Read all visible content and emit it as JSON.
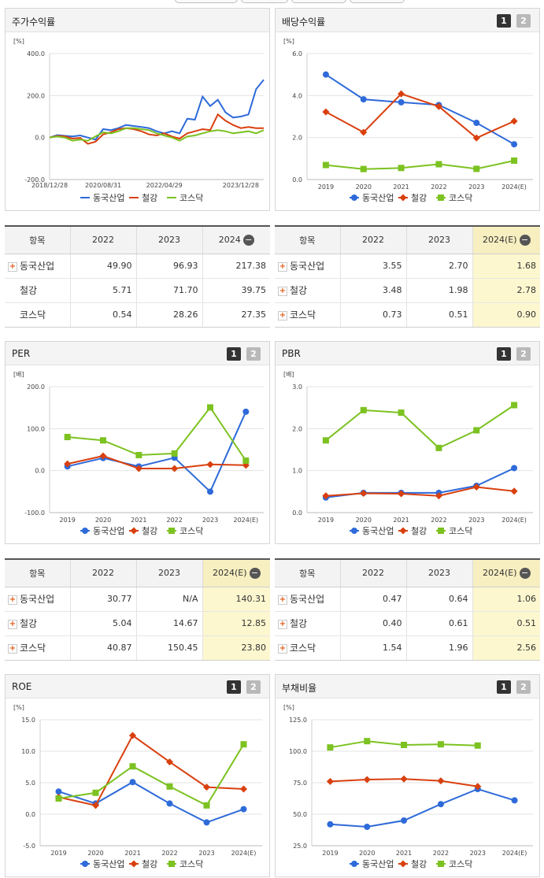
{
  "colors": {
    "dongkuk": "#2e6ad9",
    "steel": "#d9400f",
    "kosdaq": "#7cc221"
  },
  "legend": [
    "동국산업",
    "철강",
    "코스닥"
  ],
  "panels": {
    "stock": {
      "title": "주가수익률",
      "unit": "[%]"
    },
    "dividend": {
      "title": "배당수익률",
      "unit": "[%]",
      "btn1": "1",
      "btn2": "2"
    },
    "per": {
      "title": "PER",
      "unit": "[배]",
      "btn1": "1",
      "btn2": "2"
    },
    "pbr": {
      "title": "PBR",
      "unit": "[배]",
      "btn1": "1",
      "btn2": "2"
    },
    "roe": {
      "title": "ROE",
      "unit": "[%]",
      "btn1": "1",
      "btn2": "2"
    },
    "debt": {
      "title": "부채비율",
      "unit": "[%]",
      "btn1": "1",
      "btn2": "2"
    }
  },
  "tables": {
    "stock": {
      "headers": [
        "항목",
        "2022",
        "2023",
        "2024"
      ],
      "rows": [
        {
          "name": "동국산업",
          "plus": true,
          "values": [
            "49.90",
            "96.93",
            "217.38"
          ]
        },
        {
          "name": "철강",
          "plus": false,
          "values": [
            "5.71",
            "71.70",
            "39.75"
          ]
        },
        {
          "name": "코스닥",
          "plus": false,
          "values": [
            "0.54",
            "28.26",
            "27.35"
          ]
        }
      ]
    },
    "dividend": {
      "headers": [
        "항목",
        "2022",
        "2023",
        "2024(E)"
      ],
      "rows": [
        {
          "name": "동국산업",
          "plus": true,
          "values": [
            "3.55",
            "2.70",
            "1.68"
          ]
        },
        {
          "name": "철강",
          "plus": true,
          "values": [
            "3.48",
            "1.98",
            "2.78"
          ]
        },
        {
          "name": "코스닥",
          "plus": true,
          "values": [
            "0.73",
            "0.51",
            "0.90"
          ]
        }
      ]
    },
    "per": {
      "headers": [
        "항목",
        "2022",
        "2023",
        "2024(E)"
      ],
      "rows": [
        {
          "name": "동국산업",
          "plus": true,
          "values": [
            "30.77",
            "N/A",
            "140.31"
          ]
        },
        {
          "name": "철강",
          "plus": true,
          "values": [
            "5.04",
            "14.67",
            "12.85"
          ]
        },
        {
          "name": "코스닥",
          "plus": true,
          "values": [
            "40.87",
            "150.45",
            "23.80"
          ]
        }
      ]
    },
    "pbr": {
      "headers": [
        "항목",
        "2022",
        "2023",
        "2024(E)"
      ],
      "rows": [
        {
          "name": "동국산업",
          "plus": true,
          "values": [
            "0.47",
            "0.64",
            "1.06"
          ]
        },
        {
          "name": "철강",
          "plus": true,
          "values": [
            "0.40",
            "0.61",
            "0.51"
          ]
        },
        {
          "name": "코스닥",
          "plus": true,
          "values": [
            "1.54",
            "1.96",
            "2.56"
          ]
        }
      ]
    }
  },
  "chart_data": [
    {
      "id": "stock",
      "type": "line",
      "title": "주가수익률",
      "ylabel": "[%]",
      "ylim": [
        -200,
        400
      ],
      "yticks": [
        "400.0",
        "200.0",
        "0.0",
        "-200.0"
      ],
      "xticks": [
        "2018/12/28",
        "2020/08/31",
        "2022/04/29",
        "2023/12/28"
      ],
      "x": [
        "2018/12/28",
        "2019/03",
        "2019/06",
        "2019/09",
        "2019/12",
        "2020/03",
        "2020/06",
        "2020/08/31",
        "2020/10",
        "2020/12",
        "2021/03",
        "2021/06",
        "2021/09",
        "2021/12",
        "2022/02",
        "2022/04/29",
        "2022/06",
        "2022/08",
        "2022/10",
        "2022/12",
        "2023/02",
        "2023/04",
        "2023/06",
        "2023/08",
        "2023/10",
        "2023/12/28",
        "2024/02",
        "2024/04",
        "2024/05"
      ],
      "series": [
        {
          "name": "동국산업",
          "values": [
            0,
            12,
            8,
            5,
            10,
            0,
            -10,
            40,
            35,
            45,
            60,
            55,
            50,
            45,
            30,
            20,
            30,
            20,
            90,
            85,
            195,
            150,
            180,
            120,
            95,
            100,
            110,
            230,
            275
          ]
        },
        {
          "name": "철강",
          "values": [
            0,
            8,
            5,
            -5,
            -2,
            -30,
            -20,
            15,
            25,
            40,
            45,
            40,
            30,
            15,
            10,
            20,
            5,
            -5,
            20,
            30,
            40,
            35,
            110,
            80,
            60,
            45,
            50,
            45,
            45
          ]
        },
        {
          "name": "코스닥",
          "values": [
            0,
            5,
            0,
            -15,
            -10,
            -15,
            5,
            25,
            20,
            30,
            45,
            45,
            40,
            35,
            20,
            10,
            0,
            -15,
            5,
            10,
            20,
            30,
            35,
            30,
            20,
            25,
            30,
            20,
            35
          ]
        }
      ]
    },
    {
      "id": "dividend",
      "type": "line",
      "title": "배당수익률",
      "ylabel": "[%]",
      "ylim": [
        0,
        6
      ],
      "yticks": [
        "6.0",
        "4.0",
        "2.0",
        "0.0"
      ],
      "categories": [
        "2019",
        "2020",
        "2021",
        "2022",
        "2023",
        "2024(E)"
      ],
      "series": [
        {
          "name": "동국산업",
          "values": [
            5.0,
            3.82,
            3.68,
            3.55,
            2.7,
            1.68
          ]
        },
        {
          "name": "철강",
          "values": [
            3.22,
            2.25,
            4.08,
            3.48,
            1.98,
            2.78
          ]
        },
        {
          "name": "코스닥",
          "values": [
            0.69,
            0.5,
            0.55,
            0.73,
            0.51,
            0.9
          ]
        }
      ]
    },
    {
      "id": "per",
      "type": "line",
      "title": "PER",
      "ylabel": "[배]",
      "ylim": [
        -100,
        200
      ],
      "yticks": [
        "200.0",
        "100.0",
        "0.0",
        "-100.0"
      ],
      "categories": [
        "2019",
        "2020",
        "2021",
        "2022",
        "2023",
        "2024(E)"
      ],
      "series": [
        {
          "name": "동국산업",
          "values": [
            10,
            30,
            10,
            30.77,
            -50,
            140.31
          ]
        },
        {
          "name": "철강",
          "values": [
            16,
            35,
            5,
            5.04,
            14.67,
            12.85
          ]
        },
        {
          "name": "코스닥",
          "values": [
            80,
            72,
            37,
            40.87,
            150.45,
            23.8
          ]
        }
      ]
    },
    {
      "id": "pbr",
      "type": "line",
      "title": "PBR",
      "ylabel": "[배]",
      "ylim": [
        0,
        3
      ],
      "yticks": [
        "3.0",
        "2.0",
        "1.0",
        "0.0"
      ],
      "categories": [
        "2019",
        "2020",
        "2021",
        "2022",
        "2023",
        "2024(E)"
      ],
      "series": [
        {
          "name": "동국산업",
          "values": [
            0.36,
            0.47,
            0.47,
            0.47,
            0.64,
            1.06
          ]
        },
        {
          "name": "철강",
          "values": [
            0.4,
            0.46,
            0.45,
            0.4,
            0.61,
            0.51
          ]
        },
        {
          "name": "코스닥",
          "values": [
            1.72,
            2.44,
            2.38,
            1.54,
            1.96,
            2.56
          ]
        }
      ]
    },
    {
      "id": "roe",
      "type": "line",
      "title": "ROE",
      "ylabel": "[%]",
      "ylim": [
        -5,
        15
      ],
      "yticks": [
        "15.0",
        "10.0",
        "5.0",
        "0.0",
        "-5.0"
      ],
      "categories": [
        "2019",
        "2020",
        "2021",
        "2022",
        "2023",
        "2024(E)"
      ],
      "series": [
        {
          "name": "동국산업",
          "values": [
            3.6,
            1.7,
            5.1,
            1.7,
            -1.3,
            0.8
          ]
        },
        {
          "name": "철강",
          "values": [
            2.7,
            1.4,
            12.5,
            8.3,
            4.3,
            4.0
          ]
        },
        {
          "name": "코스닥",
          "values": [
            2.5,
            3.4,
            7.6,
            4.4,
            1.4,
            11.1
          ]
        }
      ]
    },
    {
      "id": "debt",
      "type": "line",
      "title": "부채비율",
      "ylabel": "[%]",
      "ylim": [
        25,
        125
      ],
      "yticks": [
        "125.0",
        "100.0",
        "75.0",
        "50.0",
        "25.0"
      ],
      "categories": [
        "2019",
        "2020",
        "2021",
        "2022",
        "2023",
        "2024(E)"
      ],
      "series": [
        {
          "name": "동국산업",
          "values": [
            42,
            40,
            45,
            58,
            70,
            61
          ]
        },
        {
          "name": "철강",
          "values": [
            76,
            77.5,
            78,
            76.5,
            72,
            null
          ]
        },
        {
          "name": "코스닥",
          "values": [
            103,
            108,
            105,
            105.5,
            104.5,
            null
          ]
        }
      ]
    }
  ]
}
